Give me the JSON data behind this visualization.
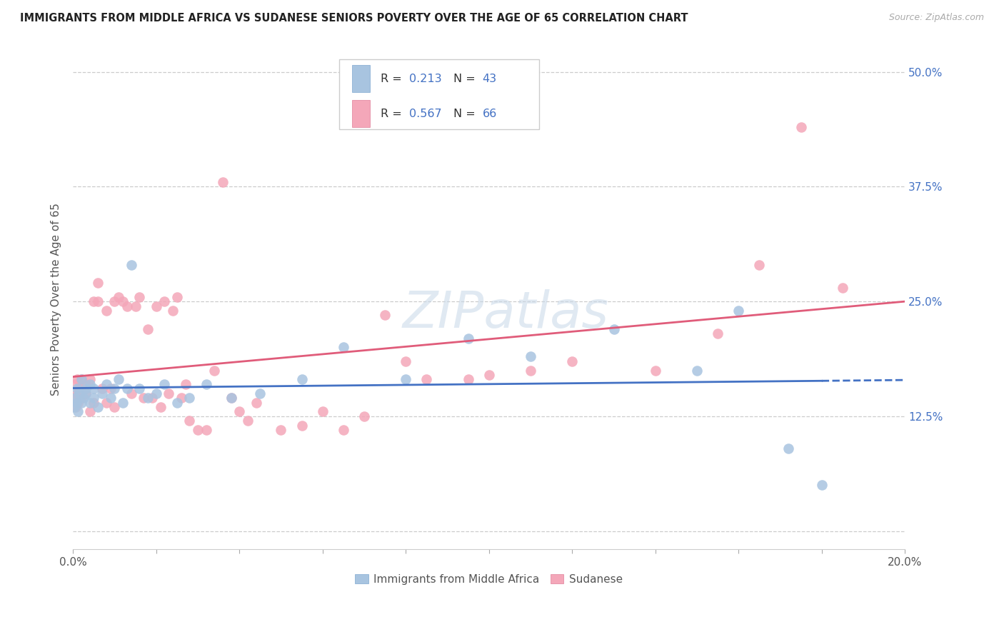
{
  "title": "IMMIGRANTS FROM MIDDLE AFRICA VS SUDANESE SENIORS POVERTY OVER THE AGE OF 65 CORRELATION CHART",
  "source": "Source: ZipAtlas.com",
  "xlabel_blue": "Immigrants from Middle Africa",
  "xlabel_pink": "Sudanese",
  "ylabel": "Seniors Poverty Over the Age of 65",
  "R_blue": 0.213,
  "N_blue": 43,
  "R_pink": 0.567,
  "N_pink": 66,
  "xlim": [
    0.0,
    0.2
  ],
  "ylim": [
    -0.02,
    0.525
  ],
  "xticks": [
    0.0,
    0.02,
    0.04,
    0.06,
    0.08,
    0.1,
    0.12,
    0.14,
    0.16,
    0.18,
    0.2
  ],
  "yticks": [
    0.0,
    0.125,
    0.25,
    0.375,
    0.5
  ],
  "blue_color": "#a8c4e0",
  "blue_line_color": "#4472c4",
  "pink_color": "#f4a7b9",
  "pink_line_color": "#e05c7a",
  "watermark": "ZIPatlas",
  "blue_scatter_x": [
    0.0003,
    0.0005,
    0.0008,
    0.001,
    0.0012,
    0.0015,
    0.002,
    0.002,
    0.0025,
    0.003,
    0.003,
    0.004,
    0.004,
    0.005,
    0.005,
    0.006,
    0.007,
    0.008,
    0.009,
    0.01,
    0.011,
    0.012,
    0.013,
    0.014,
    0.016,
    0.018,
    0.02,
    0.022,
    0.025,
    0.028,
    0.032,
    0.038,
    0.045,
    0.055,
    0.065,
    0.08,
    0.095,
    0.11,
    0.13,
    0.15,
    0.16,
    0.172,
    0.18
  ],
  "blue_scatter_y": [
    0.135,
    0.145,
    0.14,
    0.155,
    0.13,
    0.15,
    0.14,
    0.165,
    0.145,
    0.15,
    0.155,
    0.14,
    0.16,
    0.145,
    0.155,
    0.135,
    0.15,
    0.16,
    0.145,
    0.155,
    0.165,
    0.14,
    0.155,
    0.29,
    0.155,
    0.145,
    0.15,
    0.16,
    0.14,
    0.145,
    0.16,
    0.145,
    0.15,
    0.165,
    0.2,
    0.165,
    0.21,
    0.19,
    0.22,
    0.175,
    0.24,
    0.09,
    0.05
  ],
  "pink_scatter_x": [
    0.0002,
    0.0005,
    0.0007,
    0.001,
    0.001,
    0.0012,
    0.0015,
    0.002,
    0.002,
    0.003,
    0.003,
    0.004,
    0.004,
    0.005,
    0.005,
    0.006,
    0.006,
    0.007,
    0.008,
    0.008,
    0.009,
    0.01,
    0.01,
    0.011,
    0.012,
    0.013,
    0.014,
    0.015,
    0.016,
    0.017,
    0.018,
    0.019,
    0.02,
    0.021,
    0.022,
    0.023,
    0.024,
    0.025,
    0.026,
    0.027,
    0.028,
    0.03,
    0.032,
    0.034,
    0.036,
    0.038,
    0.04,
    0.042,
    0.044,
    0.05,
    0.055,
    0.06,
    0.065,
    0.07,
    0.075,
    0.08,
    0.085,
    0.095,
    0.1,
    0.11,
    0.12,
    0.14,
    0.155,
    0.165,
    0.175,
    0.185
  ],
  "pink_scatter_y": [
    0.145,
    0.16,
    0.135,
    0.15,
    0.165,
    0.14,
    0.155,
    0.145,
    0.165,
    0.15,
    0.16,
    0.13,
    0.165,
    0.25,
    0.14,
    0.27,
    0.25,
    0.155,
    0.24,
    0.14,
    0.155,
    0.25,
    0.135,
    0.255,
    0.25,
    0.245,
    0.15,
    0.245,
    0.255,
    0.145,
    0.22,
    0.145,
    0.245,
    0.135,
    0.25,
    0.15,
    0.24,
    0.255,
    0.145,
    0.16,
    0.12,
    0.11,
    0.11,
    0.175,
    0.38,
    0.145,
    0.13,
    0.12,
    0.14,
    0.11,
    0.115,
    0.13,
    0.11,
    0.125,
    0.235,
    0.185,
    0.165,
    0.165,
    0.17,
    0.175,
    0.185,
    0.175,
    0.215,
    0.29,
    0.44,
    0.265
  ]
}
